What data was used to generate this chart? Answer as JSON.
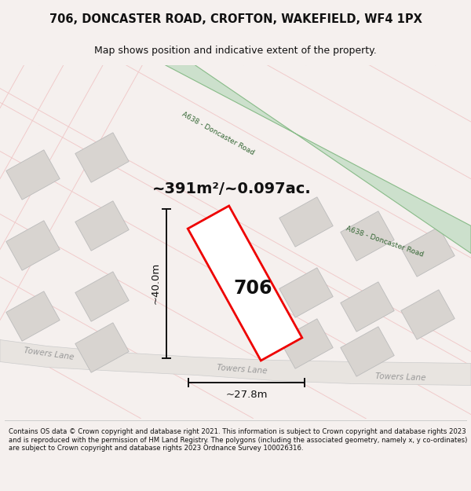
{
  "title": "706, DONCASTER ROAD, CROFTON, WAKEFIELD, WF4 1PX",
  "subtitle": "Map shows position and indicative extent of the property.",
  "area_text": "~391m²/~0.097ac.",
  "dim_width": "~27.8m",
  "dim_height": "~40.0m",
  "plot_label": "706",
  "copyright_text": "Contains OS data © Crown copyright and database right 2021. This information is subject to Crown copyright and database rights 2023 and is reproduced with the permission of HM Land Registry. The polygons (including the associated geometry, namely x, y co-ordinates) are subject to Crown copyright and database rights 2023 Ordnance Survey 100026316.",
  "bg_color": "#f5f0ee",
  "map_bg_color": "#ffffff",
  "road_green_fill": "#cce0cc",
  "road_green_edge": "#88bb88",
  "building_fill": "#d8d4d0",
  "building_edge": "#bbbbbb",
  "plot_edge": "#ee0000",
  "plot_fill": "#ffffff",
  "road_pink": "#f0c8c8",
  "towers_road_fill": "#e8e4e0",
  "towers_road_edge": "#cccccc",
  "dim_color": "#111111",
  "label_color": "#444444",
  "text_color": "#111111",
  "title_fontsize": 10.5,
  "subtitle_fontsize": 9,
  "footer_fontsize": 6.1
}
